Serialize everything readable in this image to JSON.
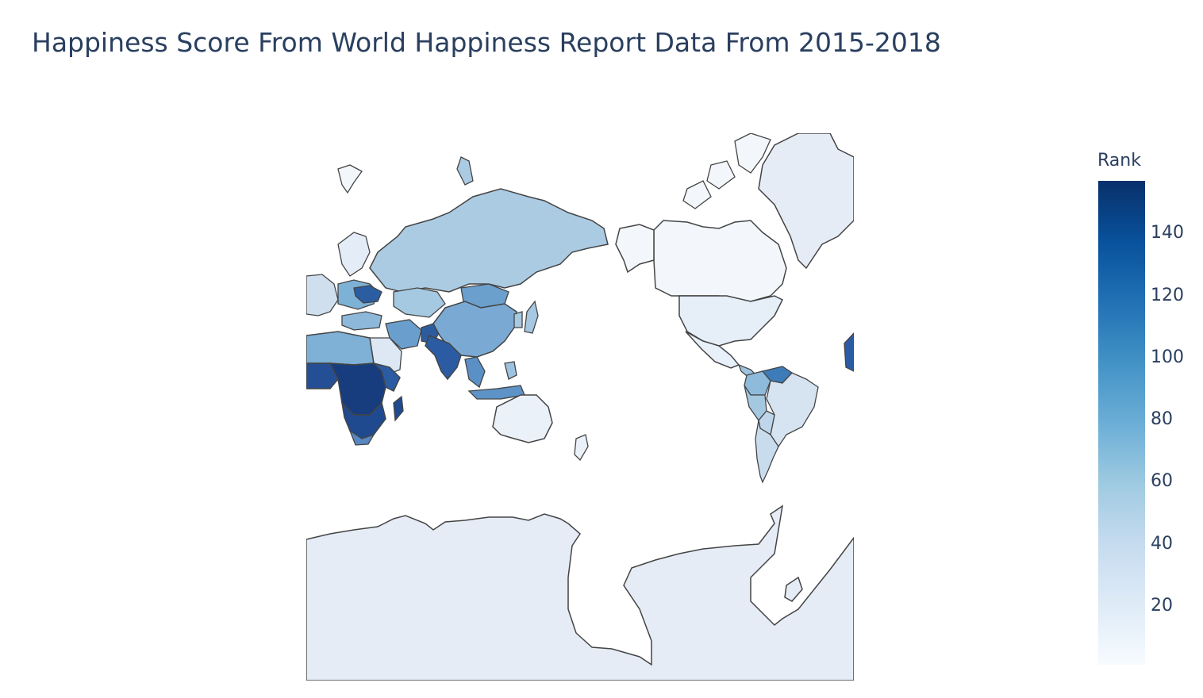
{
  "title": "Happiness Score From World Happiness Report Data From 2015-2018",
  "colorbar": {
    "title": "Rank",
    "min": 1,
    "max": 157,
    "ticks": [
      {
        "value": 20,
        "label": "20"
      },
      {
        "value": 40,
        "label": "40"
      },
      {
        "value": 60,
        "label": "60"
      },
      {
        "value": 80,
        "label": "80"
      },
      {
        "value": 100,
        "label": "100"
      },
      {
        "value": 120,
        "label": "120"
      },
      {
        "value": 140,
        "label": "140"
      }
    ],
    "colorscale": [
      "#f7fbff",
      "#deebf7",
      "#c6dbef",
      "#9ecae1",
      "#6baed6",
      "#4292c6",
      "#2171b5",
      "#08519c",
      "#08306b"
    ]
  },
  "map": {
    "projection": "mercator",
    "land_color": "#ffffff",
    "border_color": "#444444",
    "no_data_color": "#e5ecf6"
  }
}
